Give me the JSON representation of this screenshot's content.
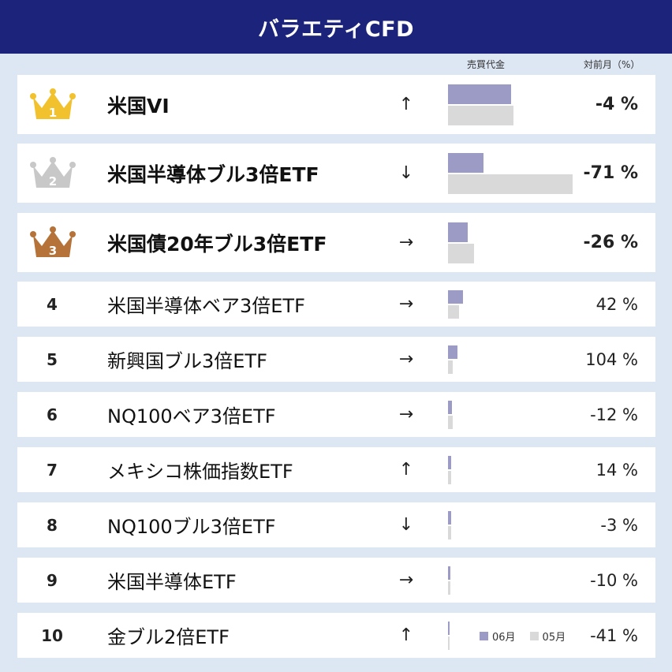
{
  "header": {
    "title": "バラエティCFD"
  },
  "columns": {
    "volume": "売買代金",
    "change": "対前月（%）"
  },
  "legend": {
    "current": "06月",
    "previous": "05月"
  },
  "colors": {
    "header": "#1b237a",
    "current": "#9b9bc6",
    "previous": "#d9d9d9",
    "gold": "#f2c12e",
    "silver": "#c8c8c8",
    "bronze": "#b5733a"
  },
  "chart_data": {
    "type": "bar",
    "categories": [
      "米国VI",
      "米国半導体ブル3倍ETF",
      "米国債20年ブル3倍ETF",
      "米国半導体ベア3倍ETF",
      "新興国ブル3倍ETF",
      "NQ100ベア3倍ETF",
      "メキシコ株価指数ETF",
      "NQ100ブル3倍ETF",
      "米国半導体ETF",
      "金ブル2倍ETF"
    ],
    "series": [
      {
        "name": "06月",
        "values": [
          80,
          45,
          25,
          19,
          12,
          5,
          4,
          4,
          3,
          1.5
        ]
      },
      {
        "name": "05月",
        "values": [
          83,
          158,
          33,
          14,
          6,
          6,
          4,
          4,
          3,
          2
        ]
      }
    ]
  },
  "rows": [
    {
      "rank": "1",
      "name": "米国VI",
      "arrow": "↑",
      "change": "-4 %"
    },
    {
      "rank": "2",
      "name": "米国半導体ブル3倍ETF",
      "arrow": "↓",
      "change": "-71 %"
    },
    {
      "rank": "3",
      "name": "米国債20年ブル3倍ETF",
      "arrow": "→",
      "change": "-26 %"
    },
    {
      "rank": "4",
      "name": "米国半導体ベア3倍ETF",
      "arrow": "→",
      "change": "42 %"
    },
    {
      "rank": "5",
      "name": "新興国ブル3倍ETF",
      "arrow": "→",
      "change": "104 %"
    },
    {
      "rank": "6",
      "name": "NQ100ベア3倍ETF",
      "arrow": "→",
      "change": "-12 %"
    },
    {
      "rank": "7",
      "name": "メキシコ株価指数ETF",
      "arrow": "↑",
      "change": "14 %"
    },
    {
      "rank": "8",
      "name": "NQ100ブル3倍ETF",
      "arrow": "↓",
      "change": "-3 %"
    },
    {
      "rank": "9",
      "name": "米国半導体ETF",
      "arrow": "→",
      "change": "-10 %"
    },
    {
      "rank": "10",
      "name": "金ブル2倍ETF",
      "arrow": "↑",
      "change": "-41 %"
    }
  ]
}
